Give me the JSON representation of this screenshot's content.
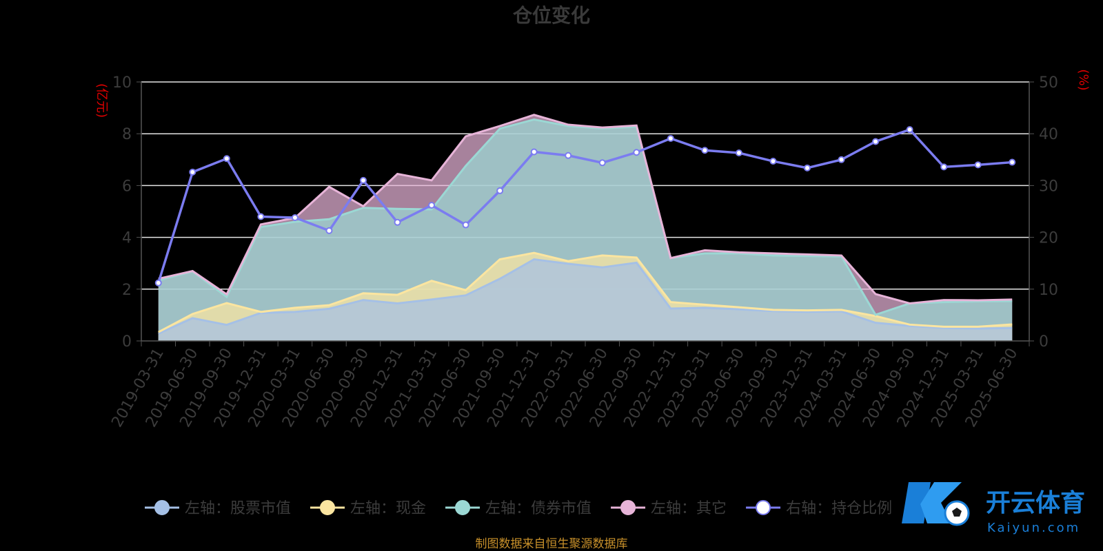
{
  "chart_data": {
    "type": "area",
    "title": "仓位变化",
    "y_left_unit": "(亿元)",
    "y_right_unit": "(%)",
    "y_left_range": [
      0,
      10
    ],
    "y_left_ticks": [
      "0",
      "2",
      "4",
      "6",
      "8",
      "10"
    ],
    "y_right_range": [
      0,
      50
    ],
    "y_right_ticks": [
      "0",
      "10",
      "20",
      "30",
      "40",
      "50"
    ],
    "grid": true,
    "legend_position": "bottom",
    "categories": [
      "2019-03-31",
      "2019-06-30",
      "2019-09-30",
      "2019-12-31",
      "2020-03-31",
      "2020-06-30",
      "2020-09-30",
      "2020-12-31",
      "2021-03-31",
      "2021-06-30",
      "2021-09-30",
      "2021-12-31",
      "2022-03-31",
      "2022-06-30",
      "2022-09-30",
      "2022-12-31",
      "2023-03-31",
      "2023-06-30",
      "2023-09-30",
      "2023-12-31",
      "2024-03-31",
      "2024-06-30",
      "2024-09-30",
      "2024-12-31",
      "2025-03-31",
      "2025-06-30"
    ],
    "series": [
      {
        "name": "左轴：股票市值",
        "axis": "left",
        "type": "area",
        "color": "#a5c0e6",
        "values": [
          0.28,
          0.88,
          0.62,
          1.08,
          1.12,
          1.24,
          1.58,
          1.45,
          1.6,
          1.76,
          2.4,
          3.15,
          2.98,
          2.84,
          3.02,
          1.25,
          1.28,
          1.22,
          1.15,
          1.12,
          1.14,
          0.7,
          0.58,
          0.5,
          0.48,
          0.5
        ]
      },
      {
        "name": "左轴：现金",
        "axis": "left",
        "type": "area",
        "color": "#fbe5a0",
        "values": [
          0.06,
          0.16,
          0.84,
          0.04,
          0.16,
          0.14,
          0.26,
          0.33,
          0.72,
          0.2,
          0.75,
          0.25,
          0.1,
          0.46,
          0.2,
          0.25,
          0.12,
          0.08,
          0.05,
          0.06,
          0.06,
          0.26,
          0.05,
          0.05,
          0.07,
          0.14
        ]
      },
      {
        "name": "左轴：债券市值",
        "axis": "left",
        "type": "area",
        "color": "#9bd8d4",
        "values": [
          2.0,
          1.64,
          0.24,
          3.28,
          3.32,
          3.32,
          3.3,
          3.32,
          2.76,
          4.8,
          5.05,
          5.15,
          5.22,
          4.9,
          5.05,
          1.7,
          1.98,
          2.08,
          2.1,
          2.1,
          2.06,
          0.05,
          0.82,
          0.95,
          0.98,
          0.9
        ]
      },
      {
        "name": "左轴：其它",
        "axis": "left",
        "type": "area",
        "color": "#e7b4d8",
        "values": [
          0.06,
          0.02,
          0.1,
          0.1,
          0.15,
          1.25,
          0.06,
          1.35,
          1.12,
          1.14,
          0.1,
          0.18,
          0.05,
          0.04,
          0.05,
          0.0,
          0.12,
          0.04,
          0.08,
          0.06,
          0.04,
          0.8,
          0.0,
          0.08,
          0.04,
          0.06
        ]
      },
      {
        "name": "右轴：持仓比例",
        "axis": "right",
        "type": "line",
        "color": "#7b7cf0",
        "values": [
          11.2,
          32.6,
          35.2,
          24.0,
          23.8,
          21.3,
          31.0,
          22.9,
          26.2,
          22.4,
          29.0,
          36.5,
          35.8,
          34.4,
          36.4,
          39.1,
          36.8,
          36.3,
          34.7,
          33.4,
          35.0,
          38.5,
          40.8,
          33.6,
          34.0,
          34.5
        ]
      }
    ]
  },
  "footer": {
    "source": "制图数据来自恒生聚源数据库"
  },
  "watermark": {
    "text_cn": "开云体育",
    "text_en": "Kaiyun.com"
  }
}
